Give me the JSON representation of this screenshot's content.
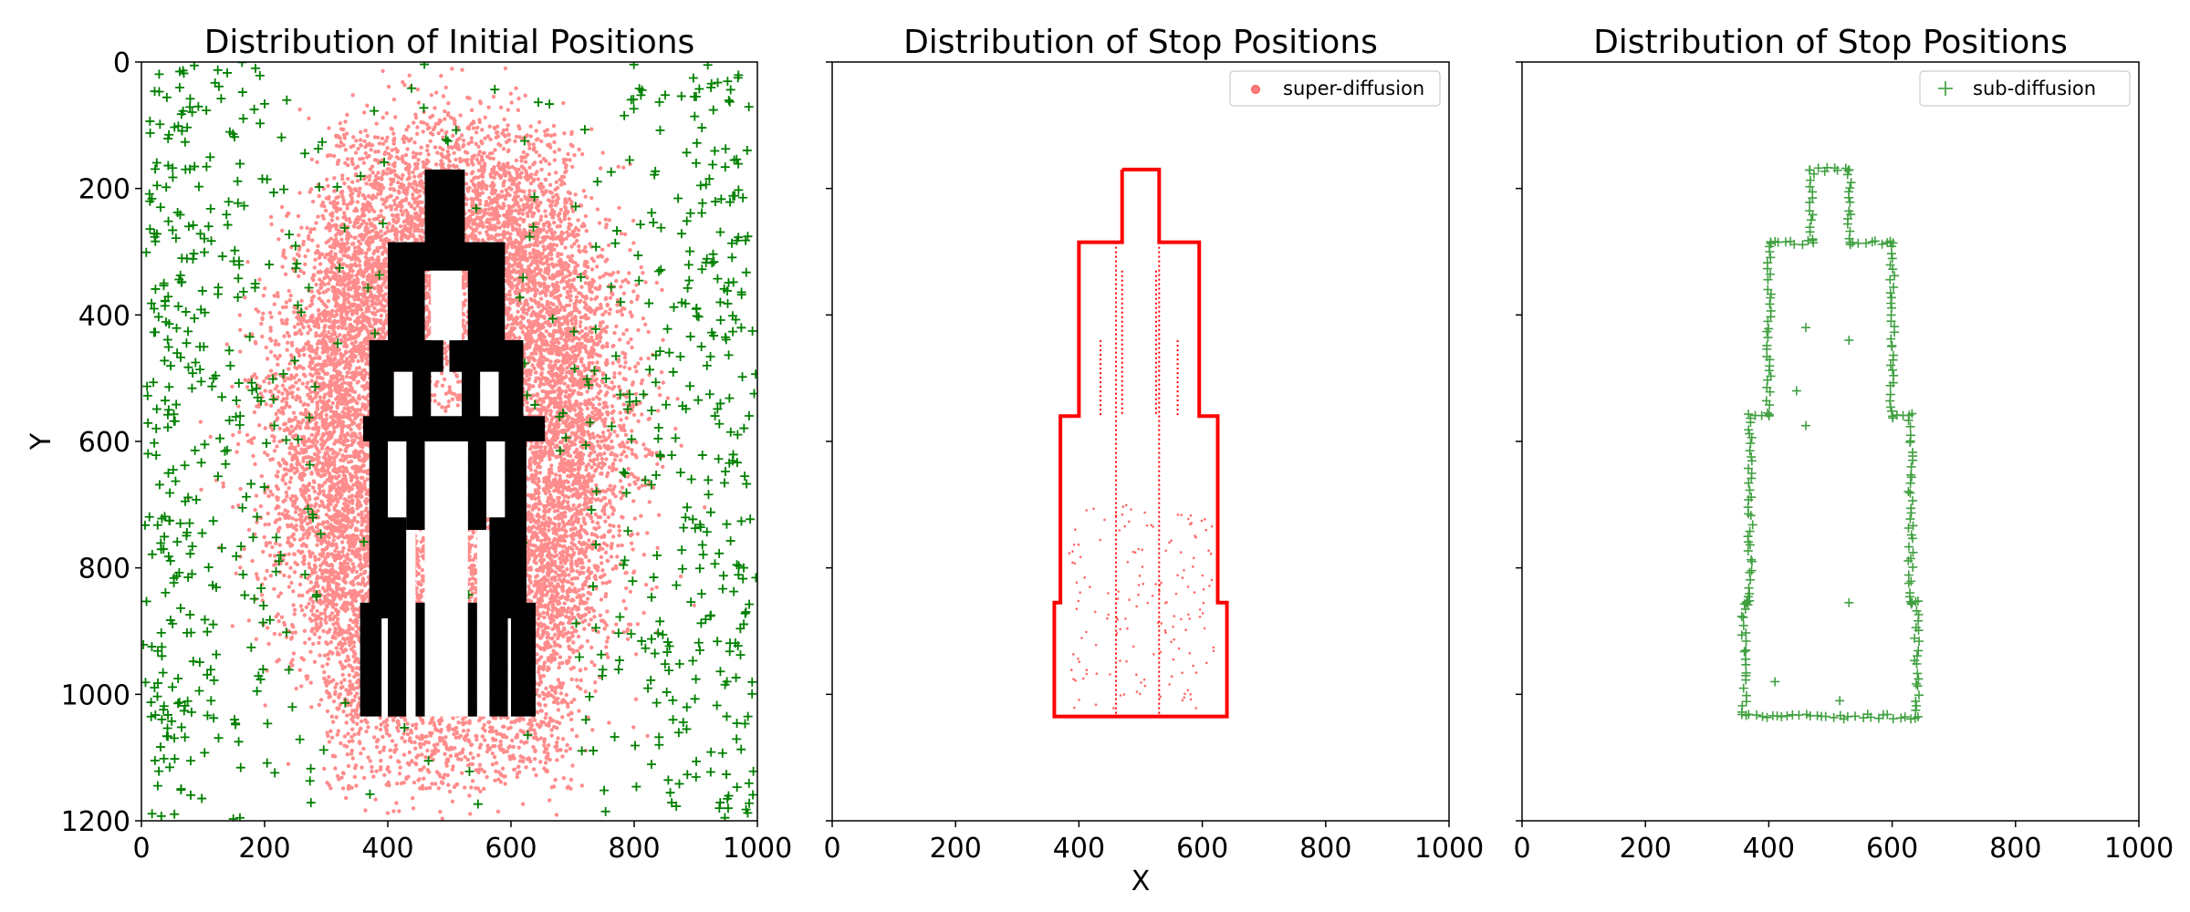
{
  "chart_data": [
    {
      "type": "scatter",
      "title": "Distribution of Initial Positions",
      "xlabel": "",
      "ylabel": "Y",
      "xlim": [
        0,
        1000
      ],
      "ylim": [
        1200,
        0
      ],
      "y_inverted": true,
      "xticks": [
        "0",
        "200",
        "400",
        "600",
        "800",
        "1000"
      ],
      "yticks": [
        "0",
        "200",
        "400",
        "600",
        "800",
        "1000",
        "1200"
      ],
      "legend": null,
      "series": [
        {
          "marker": "circle",
          "color": "#ff0000",
          "description_points": "dense ring of initial positions, approx. 14000 points concentrated in an elliptical band around x≈500 (radius 150–330 in x) and y≈600"
        },
        {
          "marker": "plus",
          "color": "#008000",
          "description_points": "sparse initial positions, approx. 800 points spread mostly in outer regions x<300 and x>700"
        }
      ],
      "obstacle": {
        "color": "#000000",
        "rects": [
          [
            460,
            170,
            525,
            290
          ],
          [
            400,
            285,
            590,
            330
          ],
          [
            400,
            285,
            460,
            445
          ],
          [
            530,
            285,
            590,
            445
          ],
          [
            370,
            440,
            490,
            490
          ],
          [
            500,
            440,
            620,
            490
          ],
          [
            370,
            440,
            410,
            600
          ],
          [
            440,
            440,
            470,
            600
          ],
          [
            520,
            440,
            550,
            600
          ],
          [
            580,
            440,
            620,
            600
          ],
          [
            360,
            560,
            655,
            600
          ],
          [
            370,
            560,
            400,
            880
          ],
          [
            430,
            560,
            460,
            740
          ],
          [
            530,
            560,
            560,
            740
          ],
          [
            590,
            560,
            625,
            880
          ],
          [
            355,
            855,
            390,
            1035
          ],
          [
            400,
            720,
            430,
            1035
          ],
          [
            445,
            855,
            475,
            1035
          ],
          [
            480,
            720,
            510,
            870
          ],
          [
            515,
            855,
            545,
            1035
          ],
          [
            565,
            720,
            595,
            1035
          ],
          [
            600,
            855,
            640,
            1035
          ]
        ]
      }
    },
    {
      "type": "scatter",
      "title": "Distribution of Stop Positions",
      "xlabel": "X",
      "ylabel": "",
      "xlim": [
        0,
        1000
      ],
      "ylim": [
        1200,
        0
      ],
      "y_inverted": true,
      "xticks": [
        "0",
        "200",
        "400",
        "600",
        "800",
        "1000"
      ],
      "legend": {
        "placement": "top-right",
        "label": "super-diffusion",
        "marker": "circle",
        "color": "#ff0000"
      },
      "outline": [
        [
          470,
          170
        ],
        [
          530,
          170
        ],
        [
          530,
          285
        ],
        [
          595,
          285
        ],
        [
          595,
          560
        ],
        [
          625,
          560
        ],
        [
          625,
          855
        ],
        [
          640,
          855
        ],
        [
          640,
          1035
        ],
        [
          360,
          1035
        ],
        [
          360,
          855
        ],
        [
          370,
          855
        ],
        [
          370,
          560
        ],
        [
          400,
          560
        ],
        [
          400,
          285
        ],
        [
          470,
          285
        ],
        [
          470,
          170
        ]
      ],
      "inner_lines": [
        {
          "x": 460,
          "y_range": [
            285,
            1035
          ]
        },
        {
          "x": 530,
          "y_range": [
            285,
            1035
          ]
        },
        {
          "x": 470,
          "y_range": [
            330,
            560
          ]
        },
        {
          "x": 525,
          "y_range": [
            330,
            560
          ]
        },
        {
          "x": 560,
          "y_range": [
            440,
            560
          ]
        },
        {
          "x": 435,
          "y_range": [
            440,
            560
          ]
        }
      ]
    },
    {
      "type": "scatter",
      "title": "Distribution of Stop Positions",
      "xlabel": "",
      "ylabel": "",
      "xlim": [
        0,
        1000
      ],
      "ylim": [
        1200,
        0
      ],
      "y_inverted": true,
      "xticks": [
        "0",
        "200",
        "400",
        "600",
        "800",
        "1000"
      ],
      "legend": {
        "placement": "top-right",
        "label": "sub-diffusion",
        "marker": "plus",
        "color": "#008000"
      },
      "outline": [
        [
          470,
          170
        ],
        [
          530,
          170
        ],
        [
          530,
          285
        ],
        [
          600,
          285
        ],
        [
          600,
          560
        ],
        [
          630,
          560
        ],
        [
          630,
          855
        ],
        [
          640,
          855
        ],
        [
          640,
          1035
        ],
        [
          360,
          1035
        ],
        [
          360,
          855
        ],
        [
          370,
          855
        ],
        [
          370,
          560
        ],
        [
          400,
          560
        ],
        [
          400,
          285
        ],
        [
          470,
          285
        ],
        [
          470,
          170
        ]
      ],
      "interior_points": [
        [
          460,
          420
        ],
        [
          530,
          440
        ],
        [
          445,
          520
        ],
        [
          460,
          575
        ],
        [
          530,
          855
        ],
        [
          410,
          980
        ],
        [
          515,
          1010
        ]
      ]
    }
  ]
}
